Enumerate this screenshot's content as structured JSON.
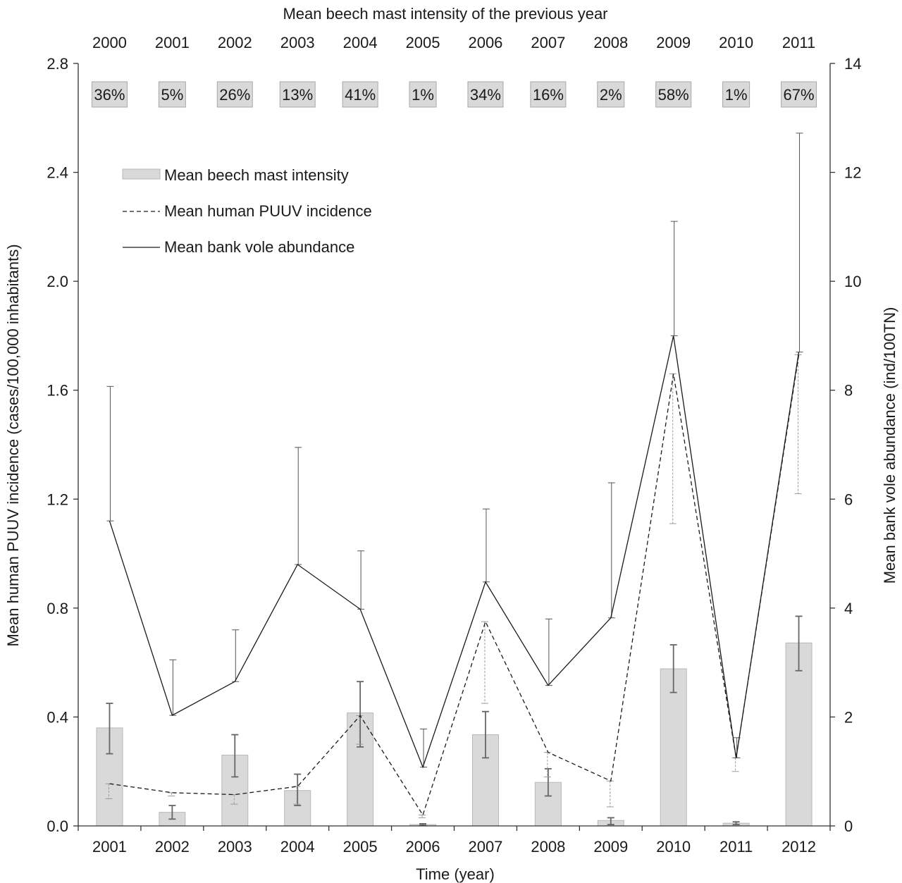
{
  "chart_data": {
    "type": "bar",
    "title": "",
    "top_axis_title": "Mean beech mast intensity of the previous year",
    "top_categories": [
      "2000",
      "2001",
      "2002",
      "2003",
      "2004",
      "2005",
      "2006",
      "2007",
      "2008",
      "2009",
      "2010",
      "2011"
    ],
    "mast_percent_labels": [
      "36%",
      "5%",
      "26%",
      "13%",
      "41%",
      "1%",
      "34%",
      "16%",
      "2%",
      "58%",
      "1%",
      "67%"
    ],
    "categories": [
      "2001",
      "2002",
      "2003",
      "2004",
      "2005",
      "2006",
      "2007",
      "2008",
      "2009",
      "2010",
      "2011",
      "2012"
    ],
    "xlabel": "Time (year)",
    "ylabel_left": "Mean human PUUV incidence (cases/100,000 inhabitants)",
    "ylabel_right": "Mean bank vole abundance (ind/100TN)",
    "ylim_left": [
      0,
      2.8
    ],
    "ylim_right": [
      0,
      14
    ],
    "yticks_left": [
      "0.0",
      "0.4",
      "0.8",
      "1.2",
      "1.6",
      "2.0",
      "2.4",
      "2.8"
    ],
    "yticks_right": [
      "0",
      "2",
      "4",
      "6",
      "8",
      "10",
      "12",
      "14"
    ],
    "grid": false,
    "legend_position": "upper-left",
    "series": [
      {
        "name": "Mean beech mast intensity",
        "kind": "bar",
        "axis": "left",
        "values": [
          0.36,
          0.05,
          0.26,
          0.13,
          0.415,
          0.005,
          0.335,
          0.16,
          0.02,
          0.577,
          0.01,
          0.672
        ],
        "err_low": [
          0.265,
          0.025,
          0.18,
          0.075,
          0.29,
          0.002,
          0.25,
          0.11,
          0.005,
          0.49,
          0.005,
          0.57
        ],
        "err_high": [
          0.45,
          0.075,
          0.335,
          0.19,
          0.53,
          0.008,
          0.42,
          0.21,
          0.03,
          0.665,
          0.015,
          0.77
        ],
        "color": "#d9d9d9"
      },
      {
        "name": "Mean human PUUV incidence",
        "kind": "line",
        "style": "dashed",
        "axis": "left",
        "values": [
          0.155,
          0.122,
          0.115,
          0.145,
          0.405,
          0.04,
          0.75,
          0.27,
          0.165,
          1.66,
          0.25,
          1.73
        ],
        "err_low": [
          0.1,
          0.11,
          0.08,
          0.08,
          0.3,
          0.03,
          0.45,
          0.18,
          0.07,
          1.11,
          0.2,
          1.22
        ],
        "err_high": [
          0.155,
          0.122,
          0.115,
          0.145,
          0.405,
          0.04,
          0.75,
          0.27,
          0.165,
          1.66,
          0.25,
          1.73
        ],
        "color": "#1a1a1a"
      },
      {
        "name": "Mean bank vole abundance",
        "kind": "line",
        "style": "solid",
        "axis": "right",
        "values": [
          5.6,
          2.03,
          2.65,
          4.8,
          3.98,
          1.08,
          4.48,
          2.58,
          3.82,
          9.0,
          1.25,
          8.7
        ],
        "err_low": [
          5.6,
          2.03,
          2.65,
          4.8,
          3.98,
          1.08,
          4.48,
          2.58,
          3.82,
          9.0,
          1.25,
          8.7
        ],
        "err_high": [
          8.07,
          3.05,
          3.6,
          6.95,
          5.05,
          1.78,
          5.82,
          3.8,
          6.3,
          11.1,
          1.62,
          12.72
        ],
        "color": "#1a1a1a"
      }
    ]
  }
}
